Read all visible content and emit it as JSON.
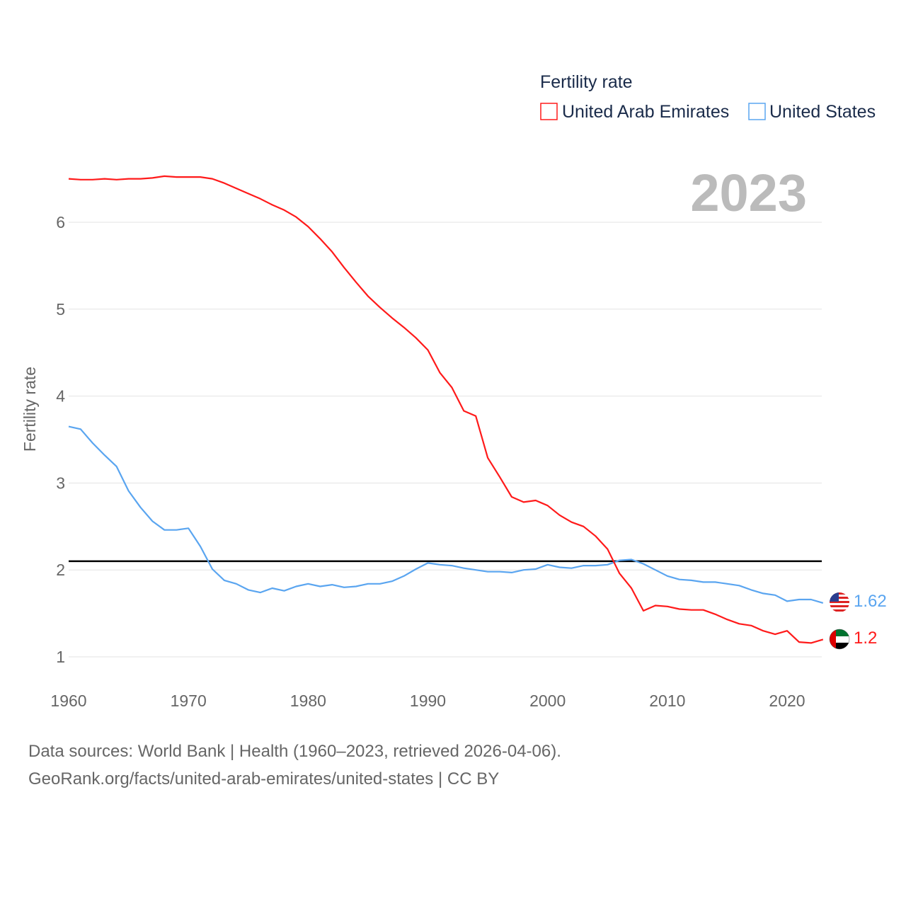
{
  "chart_data": {
    "type": "line",
    "title": "Fertility rate",
    "year_label": "2023",
    "xlabel": "",
    "ylabel": "Fertility rate",
    "xlim": [
      1960,
      2023
    ],
    "ylim": [
      0.8,
      6.5
    ],
    "x_ticks": [
      "1960",
      "1970",
      "1980",
      "1990",
      "2000",
      "2010",
      "2020"
    ],
    "y_ticks": [
      "1",
      "2",
      "3",
      "4",
      "5",
      "6"
    ],
    "grid": true,
    "legend_placement": "top-right",
    "reference_line": {
      "y": 2.1,
      "color": "#000000"
    },
    "x": [
      1960,
      1961,
      1962,
      1963,
      1964,
      1965,
      1966,
      1967,
      1968,
      1969,
      1970,
      1971,
      1972,
      1973,
      1974,
      1975,
      1976,
      1977,
      1978,
      1979,
      1980,
      1981,
      1982,
      1983,
      1984,
      1985,
      1986,
      1987,
      1988,
      1989,
      1990,
      1991,
      1992,
      1993,
      1994,
      1995,
      1996,
      1997,
      1998,
      1999,
      2000,
      2001,
      2002,
      2003,
      2004,
      2005,
      2006,
      2007,
      2008,
      2009,
      2010,
      2011,
      2012,
      2013,
      2014,
      2015,
      2016,
      2017,
      2018,
      2019,
      2020,
      2021,
      2022,
      2023
    ],
    "series": [
      {
        "name": "United Arab Emirates",
        "color": "#ff1a1a",
        "end_label": "1.2",
        "flag": "uae-flag",
        "values": [
          6.5,
          6.49,
          6.49,
          6.5,
          6.49,
          6.5,
          6.5,
          6.51,
          6.53,
          6.52,
          6.52,
          6.52,
          6.5,
          6.45,
          6.39,
          6.33,
          6.27,
          6.2,
          6.14,
          6.06,
          5.95,
          5.81,
          5.66,
          5.48,
          5.31,
          5.15,
          5.02,
          4.9,
          4.79,
          4.67,
          4.53,
          4.27,
          4.1,
          3.83,
          3.77,
          3.29,
          3.07,
          2.84,
          2.78,
          2.8,
          2.74,
          2.63,
          2.55,
          2.5,
          2.39,
          2.24,
          1.96,
          1.79,
          1.53,
          1.59,
          1.58,
          1.55,
          1.54,
          1.54,
          1.49,
          1.43,
          1.38,
          1.36,
          1.3,
          1.26,
          1.3,
          1.17,
          1.16,
          1.2
        ]
      },
      {
        "name": "United States",
        "color": "#5aa5f0",
        "end_label": "1.62",
        "flag": "us-flag",
        "values": [
          3.65,
          3.62,
          3.46,
          3.32,
          3.19,
          2.91,
          2.72,
          2.56,
          2.46,
          2.46,
          2.48,
          2.27,
          2.01,
          1.88,
          1.84,
          1.77,
          1.74,
          1.79,
          1.76,
          1.81,
          1.84,
          1.81,
          1.83,
          1.8,
          1.81,
          1.84,
          1.84,
          1.87,
          1.93,
          2.01,
          2.08,
          2.06,
          2.05,
          2.02,
          2.0,
          1.98,
          1.98,
          1.97,
          2.0,
          2.01,
          2.06,
          2.03,
          2.02,
          2.05,
          2.05,
          2.06,
          2.11,
          2.12,
          2.07,
          2.0,
          1.93,
          1.89,
          1.88,
          1.86,
          1.86,
          1.84,
          1.82,
          1.77,
          1.73,
          1.71,
          1.64,
          1.66,
          1.66,
          1.62
        ]
      }
    ]
  },
  "footer": {
    "line1": "Data sources: World Bank | Health (1960–2023, retrieved 2026-04-06).",
    "line2": "GeoRank.org/facts/united-arab-emirates/united-states | CC BY"
  }
}
